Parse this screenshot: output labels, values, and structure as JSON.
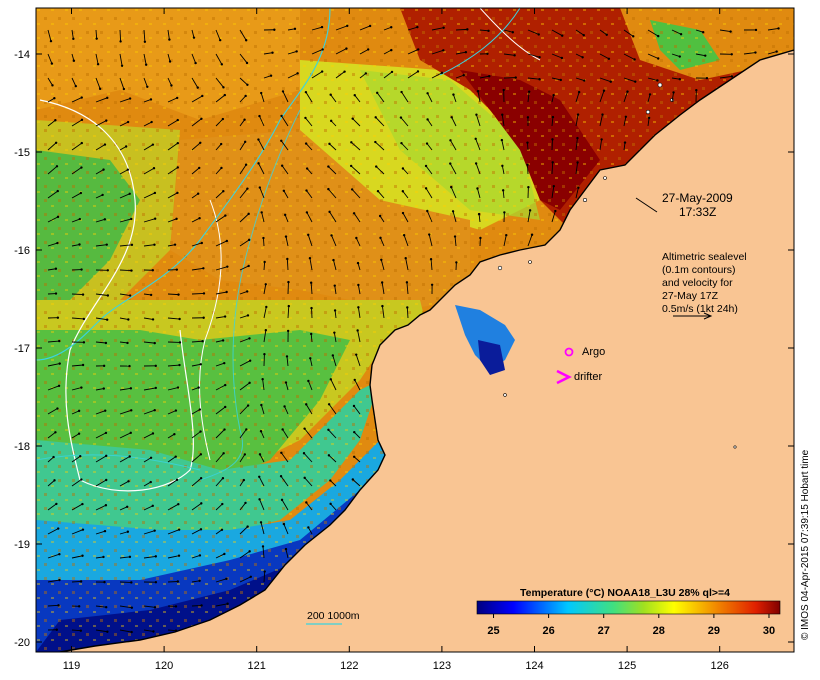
{
  "map": {
    "x_ticks": [
      "119",
      "120",
      "121",
      "122",
      "123",
      "124",
      "125",
      "126"
    ],
    "y_ticks": [
      "-14",
      "-15",
      "-16",
      "-17",
      "-18",
      "-19",
      "-20"
    ],
    "date_label": "27-May-2009",
    "time_label": "17:33Z",
    "altimetry_lines": [
      "Altimetric sealevel",
      "(0.1m contours)",
      "and velocity for",
      "27-May 17Z",
      "0.5m/s (1kt 24h)"
    ],
    "argo_label": "Argo",
    "drifter_label": "drifter",
    "depth_contours_label": "200  1000m",
    "colorbar": {
      "title": "Temperature (°C) NOAA18_L3U 28% ql>=4",
      "ticks": [
        "25",
        "26",
        "27",
        "28",
        "29",
        "30"
      ],
      "range": [
        24.7,
        30.2
      ]
    },
    "credit": "© IMOS 04-Apr-2015 07:39:15 Hobart time",
    "colors": {
      "land": "#f9c593",
      "argo_marker": "#ff00ff",
      "drifter_marker": "#ff00ff",
      "depth_contour": "#3ad4e0",
      "sealevel_contour": "#ffffff"
    }
  }
}
